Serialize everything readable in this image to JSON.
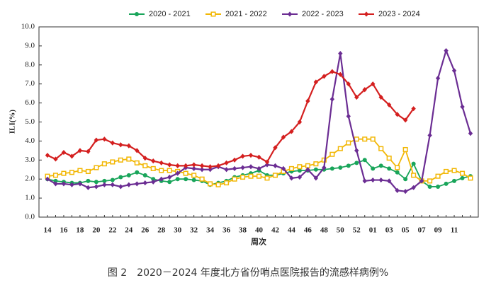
{
  "chart_data": {
    "type": "line",
    "caption": "图 2　2020－2024 年度北方省份哨点医院报告的流感样病例%",
    "xlabel": "周次",
    "ylabel": "ILI(%)",
    "categories": [
      "14",
      null,
      "16",
      null,
      "18",
      null,
      "20",
      null,
      "22",
      null,
      "24",
      null,
      "26",
      null,
      "28",
      null,
      "30",
      null,
      "32",
      null,
      "34",
      null,
      "36",
      null,
      "38",
      null,
      "40",
      null,
      "42",
      null,
      "44",
      null,
      "46",
      null,
      "48",
      null,
      "50",
      null,
      "52",
      null,
      "01",
      null,
      "03",
      null,
      "05",
      null,
      "07",
      null,
      "09",
      null,
      "11",
      null,
      null
    ],
    "ylim": [
      0,
      10
    ],
    "yticks": [
      {
        "value": 0,
        "label": "0.0"
      },
      {
        "value": 1,
        "label": "1.0"
      },
      {
        "value": 2,
        "label": "2.0"
      },
      {
        "value": 3,
        "label": "3.0"
      },
      {
        "value": 4,
        "label": "4.0"
      },
      {
        "value": 5,
        "label": "5.0"
      },
      {
        "value": 6,
        "label": "6.0"
      },
      {
        "value": 7,
        "label": "7.0"
      },
      {
        "value": 8,
        "label": "8.0"
      },
      {
        "value": 9,
        "label": "9.0"
      },
      {
        "value": 10,
        "label": "10.0"
      }
    ],
    "grid": false,
    "legend": "top",
    "series": [
      {
        "name": "2020 - 2021",
        "color": "#19a55a",
        "marker": "circle",
        "values": [
          2.0,
          1.9,
          1.85,
          1.8,
          1.8,
          1.9,
          1.85,
          1.9,
          1.95,
          2.1,
          2.2,
          2.35,
          2.2,
          2.0,
          1.9,
          1.85,
          2.0,
          2.0,
          1.95,
          1.9,
          1.7,
          1.8,
          1.9,
          2.1,
          2.2,
          2.3,
          2.45,
          2.2,
          2.2,
          2.3,
          2.4,
          2.45,
          2.45,
          2.5,
          2.5,
          2.55,
          2.6,
          2.7,
          2.85,
          3.0,
          2.55,
          2.7,
          2.55,
          2.35,
          2.0,
          2.8,
          1.9,
          1.6,
          1.6,
          1.75,
          1.9,
          2.05,
          2.15
        ]
      },
      {
        "name": "2021 - 2022",
        "color": "#f2b705",
        "marker": "square",
        "values": [
          2.15,
          2.2,
          2.3,
          2.35,
          2.45,
          2.4,
          2.6,
          2.8,
          2.9,
          3.0,
          3.05,
          2.85,
          2.7,
          2.55,
          2.45,
          2.45,
          2.4,
          2.3,
          2.2,
          2.0,
          1.75,
          1.7,
          1.8,
          2.0,
          2.1,
          2.15,
          2.15,
          2.05,
          2.2,
          2.4,
          2.55,
          2.65,
          2.7,
          2.8,
          3.0,
          3.3,
          3.6,
          3.9,
          4.1,
          4.1,
          4.1,
          3.6,
          3.1,
          2.6,
          3.55,
          2.2,
          1.9,
          1.9,
          2.15,
          2.4,
          2.45,
          2.3,
          2.05
        ]
      },
      {
        "name": "2022 - 2023",
        "color": "#6b2d93",
        "marker": "diamond",
        "values": [
          2.0,
          1.75,
          1.75,
          1.7,
          1.75,
          1.55,
          1.6,
          1.7,
          1.7,
          1.6,
          1.7,
          1.75,
          1.8,
          1.85,
          2.0,
          2.1,
          2.3,
          2.6,
          2.55,
          2.5,
          2.5,
          2.65,
          2.5,
          2.55,
          2.6,
          2.65,
          2.55,
          2.75,
          2.7,
          2.55,
          2.05,
          2.1,
          2.5,
          2.05,
          2.6,
          6.2,
          8.6,
          5.3,
          3.5,
          1.9,
          1.95,
          1.95,
          1.9,
          1.4,
          1.35,
          1.55,
          1.9,
          4.3,
          7.3,
          8.75,
          7.7,
          5.8,
          4.4
        ]
      },
      {
        "name": "2023 - 2024",
        "color": "#d41f1f",
        "marker": "diamond",
        "values": [
          3.25,
          3.05,
          3.4,
          3.2,
          3.5,
          3.45,
          4.05,
          4.1,
          3.9,
          3.8,
          3.75,
          3.5,
          3.1,
          2.95,
          2.85,
          2.75,
          2.7,
          2.7,
          2.75,
          2.7,
          2.65,
          2.7,
          2.85,
          3.0,
          3.2,
          3.25,
          3.15,
          2.9,
          3.65,
          4.2,
          4.5,
          5.0,
          6.1,
          7.1,
          7.4,
          7.65,
          7.5,
          7.0,
          6.3,
          6.7,
          7.0,
          6.3,
          5.9,
          5.4,
          5.1,
          5.7,
          null,
          null,
          null,
          null,
          null,
          null,
          null
        ]
      }
    ]
  }
}
